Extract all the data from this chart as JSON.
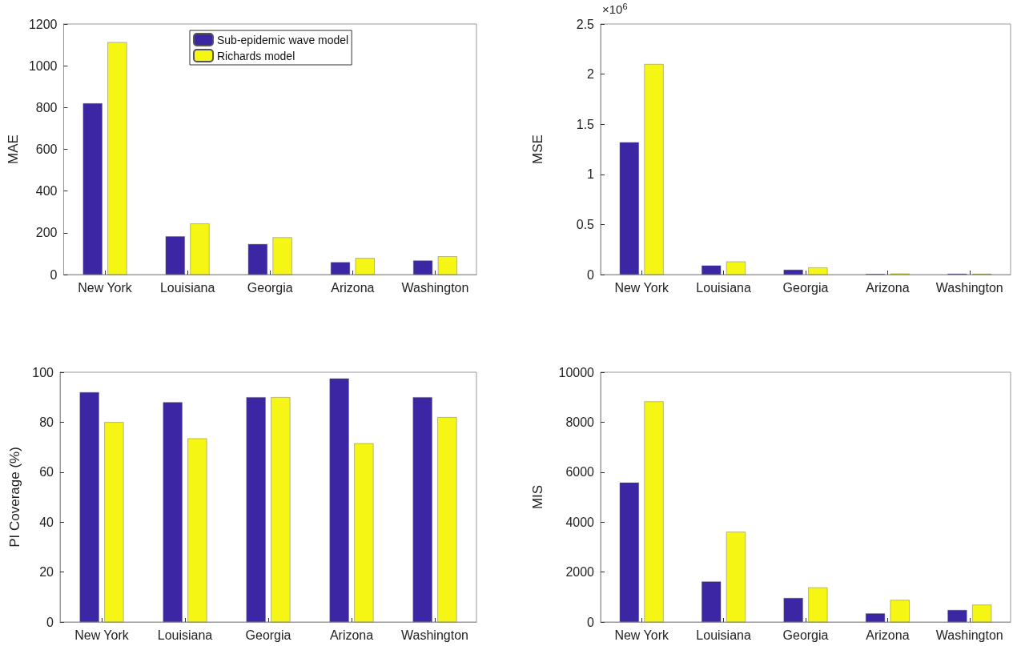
{
  "chart_data": [
    {
      "type": "bar",
      "ylabel": "MAE",
      "categories": [
        "New York",
        "Louisiana",
        "Georgia",
        "Arizona",
        "Washington"
      ],
      "series": [
        {
          "name": "Sub-epidemic wave model",
          "color": "#3c26a3",
          "values": [
            820,
            183,
            146,
            59,
            67
          ]
        },
        {
          "name": "Richards model",
          "color": "#f6f614",
          "values": [
            1113,
            244,
            178,
            79,
            87
          ]
        }
      ],
      "ylim": [
        0,
        1200
      ],
      "yticks": [
        0,
        200,
        400,
        600,
        800,
        1000,
        1200
      ],
      "grid": false,
      "legend": "top"
    },
    {
      "type": "bar",
      "ylabel": "MSE",
      "annotations": [
        "×10$^{6}$"
      ],
      "categories": [
        "New York",
        "Louisiana",
        "Georgia",
        "Arizona",
        "Washington"
      ],
      "series": [
        {
          "color": "#3c26a3",
          "values": [
            1.32,
            0.09,
            0.048,
            0.005,
            0.008
          ]
        },
        {
          "color": "#f6f614",
          "values": [
            2.1,
            0.13,
            0.07,
            0.01,
            0.007
          ]
        }
      ],
      "ylim": [
        0,
        2.5
      ],
      "yticks": [
        0,
        0.5,
        1,
        1.5,
        2,
        2.5
      ],
      "grid": false,
      "legend": false
    },
    {
      "type": "bar",
      "ylabel": "PI Coverage (%)",
      "categories": [
        "New York",
        "Louisiana",
        "Georgia",
        "Arizona",
        "Washington"
      ],
      "series": [
        {
          "color": "#3c26a3",
          "values": [
            92,
            88,
            90,
            97.5,
            90
          ]
        },
        {
          "color": "#f6f614",
          "values": [
            80,
            73.5,
            90,
            71.5,
            82
          ]
        }
      ],
      "ylim": [
        0,
        100
      ],
      "yticks": [
        0,
        20,
        40,
        60,
        80,
        100
      ],
      "grid": false,
      "legend": false
    },
    {
      "type": "bar",
      "ylabel": "MIS",
      "categories": [
        "New York",
        "Louisiana",
        "Georgia",
        "Arizona",
        "Washington"
      ],
      "series": [
        {
          "color": "#3c26a3",
          "values": [
            5580,
            1620,
            960,
            340,
            480
          ]
        },
        {
          "color": "#f6f614",
          "values": [
            8830,
            3610,
            1380,
            880,
            690
          ]
        }
      ],
      "ylim": [
        0,
        10000
      ],
      "yticks": [
        0,
        2000,
        4000,
        6000,
        8000,
        10000
      ],
      "grid": false,
      "legend": false
    }
  ]
}
